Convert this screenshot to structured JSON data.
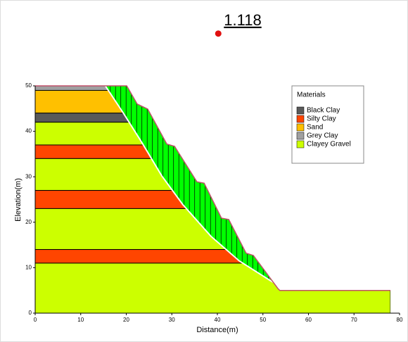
{
  "chart_data": {
    "type": "slope",
    "factor_of_safety": "1.118",
    "slip_center": [
      40.2,
      61.5
    ],
    "xlabel": "Distance(m)",
    "ylabel": "Elevation(m)",
    "xlim": [
      0,
      80
    ],
    "ylim": [
      0,
      50
    ],
    "xticks": [
      0,
      10,
      20,
      30,
      40,
      50,
      60,
      70,
      80
    ],
    "yticks": [
      0,
      10,
      20,
      30,
      40,
      50
    ],
    "legend_title": "Materials",
    "materials": [
      {
        "name": "Black Clay",
        "color": "#595959"
      },
      {
        "name": "Silty Clay",
        "color": "#ff4500"
      },
      {
        "name": "Sand",
        "color": "#ffc000"
      },
      {
        "name": "Grey Clay",
        "color": "#a0a0a0"
      },
      {
        "name": "Clayey Gravel",
        "color": "#ccff00"
      }
    ],
    "layers": [
      {
        "top": 50,
        "bottom": 49,
        "color": "#a0a0a0"
      },
      {
        "top": 49,
        "bottom": 44,
        "color": "#ffc000"
      },
      {
        "top": 44,
        "bottom": 42,
        "color": "#595959"
      },
      {
        "top": 42,
        "bottom": 37,
        "color": "#ccff00"
      },
      {
        "top": 37,
        "bottom": 34,
        "color": "#ff4500"
      },
      {
        "top": 34,
        "bottom": 27,
        "color": "#ccff00"
      },
      {
        "top": 27,
        "bottom": 23,
        "color": "#ff4500"
      },
      {
        "top": 23,
        "bottom": 14,
        "color": "#ccff00"
      },
      {
        "top": 14,
        "bottom": 11,
        "color": "#ff4500"
      },
      {
        "top": 11,
        "bottom": 0,
        "color": "#ccff00"
      }
    ],
    "ground": {
      "x": [
        0,
        20.1,
        22.4,
        24.7,
        28.9,
        30.6,
        35.5,
        37.1,
        40.9,
        42.5,
        46.3,
        47.9,
        53.3,
        53.7,
        78
      ],
      "y": [
        50,
        50,
        46,
        44.9,
        37.2,
        36.7,
        28.9,
        28.6,
        20.9,
        20.6,
        13.2,
        12.7,
        5.4,
        5,
        5
      ]
    },
    "slip_surface": {
      "x": [
        15.4,
        19.3,
        23.2,
        27.8,
        32.4,
        38.6,
        44.8,
        52.2
      ],
      "y": [
        50,
        44.1,
        37.9,
        30.2,
        23.9,
        16.9,
        11.5,
        6.8
      ]
    },
    "slip_color": "#00ff00"
  }
}
